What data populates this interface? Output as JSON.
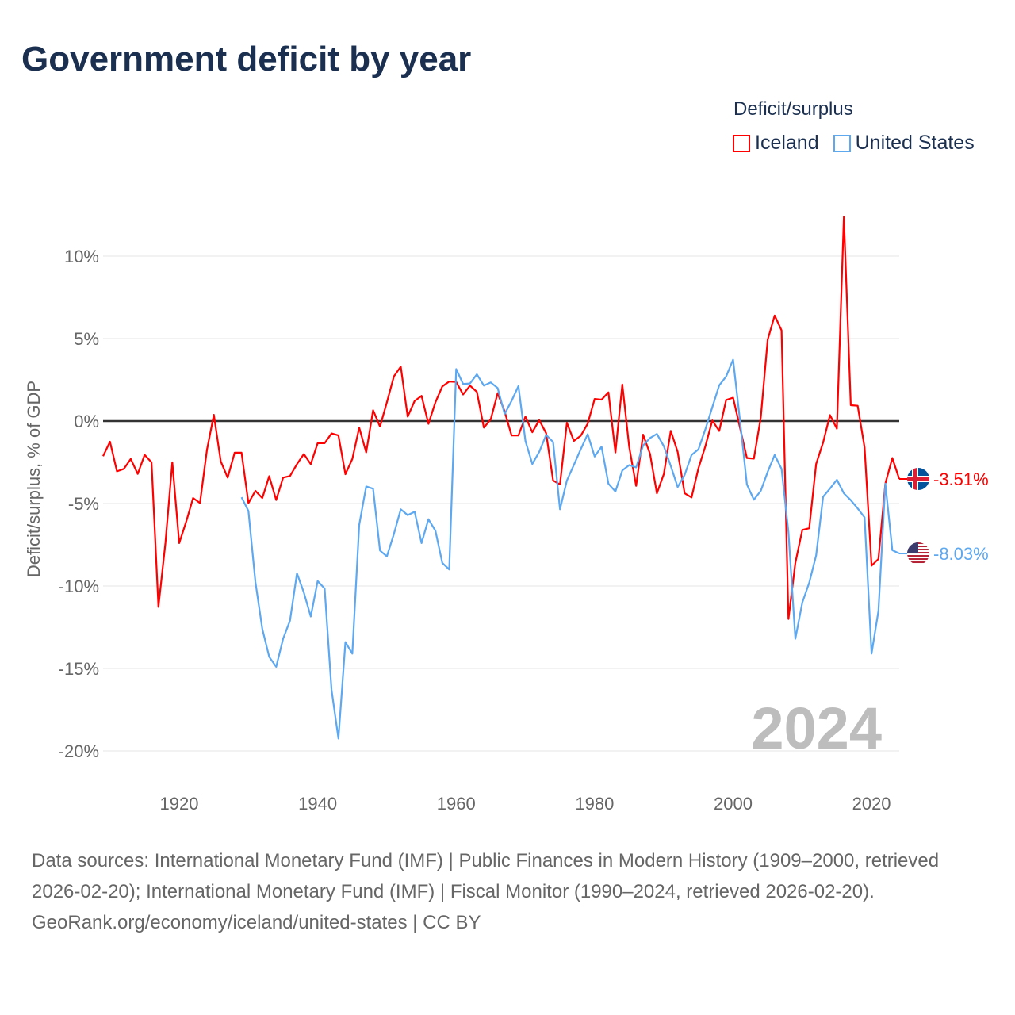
{
  "title": "Government deficit by year",
  "legend": {
    "title": "Deficit/surplus",
    "items": [
      {
        "label": "Iceland",
        "color": "#ff0000"
      },
      {
        "label": "United States",
        "color": "#5ea8f0"
      }
    ]
  },
  "chart_data": {
    "type": "line",
    "title": "Government deficit by year",
    "xlabel": "",
    "ylabel": "Deficit/surplus, % of GDP",
    "xlim": [
      1909,
      2024
    ],
    "ylim": [
      -20,
      12.5
    ],
    "x_ticks": [
      1920,
      1940,
      1960,
      1980,
      2000,
      2020
    ],
    "y_ticks": [
      10,
      5,
      0,
      -5,
      -10,
      -15,
      -20
    ],
    "y_tick_labels": [
      "10%",
      "5%",
      "0%",
      "-5%",
      "-10%",
      "-15%",
      "-20%"
    ],
    "x_tick_labels": [
      "1920",
      "1940",
      "1960",
      "1980",
      "2000",
      "2020"
    ],
    "grid": true,
    "legend_position": "top-right",
    "year_watermark": "2024",
    "series": [
      {
        "name": "Iceland",
        "color": "#ff0000",
        "start_year": 1909,
        "end_label": "-3.51%",
        "values": [
          -2.13,
          -1.25,
          -3.05,
          -2.9,
          -2.3,
          -3.2,
          -2.05,
          -2.5,
          -11.27,
          -7.4,
          -2.5,
          -7.4,
          -6.1,
          -4.67,
          -4.97,
          -1.74,
          0.38,
          -2.44,
          -3.43,
          -1.92,
          -1.92,
          -4.97,
          -4.23,
          -4.67,
          -3.34,
          -4.79,
          -3.43,
          -3.33,
          -2.61,
          -2.0,
          -2.61,
          -1.34,
          -1.34,
          -0.75,
          -0.87,
          -3.22,
          -2.3,
          -0.4,
          -1.9,
          0.66,
          -0.33,
          1.14,
          2.7,
          3.3,
          0.27,
          1.22,
          1.53,
          -0.17,
          1.14,
          2.1,
          2.4,
          2.37,
          1.61,
          2.15,
          1.77,
          -0.4,
          0.11,
          1.69,
          0.58,
          -0.87,
          -0.87,
          0.27,
          -0.68,
          0.06,
          -0.73,
          -3.6,
          -3.84,
          -0.1,
          -1.2,
          -0.89,
          -0.16,
          1.34,
          1.3,
          1.74,
          -1.91,
          2.22,
          -1.57,
          -3.93,
          -0.82,
          -1.98,
          -4.38,
          -3.2,
          -0.59,
          -1.87,
          -4.38,
          -4.63,
          -2.86,
          -1.53,
          0.04,
          -0.6,
          1.28,
          1.42,
          -0.4,
          -2.24,
          -2.28,
          0.21,
          4.93,
          6.4,
          5.5,
          -12.0,
          -8.6,
          -6.6,
          -6.5,
          -2.6,
          -1.3,
          0.36,
          -0.46,
          12.4,
          0.96,
          0.93,
          -1.6,
          -8.77,
          -8.36,
          -3.79,
          -2.24,
          -3.51
        ]
      },
      {
        "name": "United States",
        "color": "#5ea8f0",
        "start_year": 1929,
        "end_label": "-8.03%",
        "values": [
          -4.62,
          -5.45,
          -9.76,
          -12.6,
          -14.3,
          -14.9,
          -13.2,
          -12.1,
          -9.23,
          -10.4,
          -11.85,
          -9.7,
          -10.16,
          -16.3,
          -19.25,
          -13.4,
          -14.1,
          -6.3,
          -3.96,
          -4.1,
          -7.85,
          -8.2,
          -6.85,
          -5.35,
          -5.7,
          -5.5,
          -7.4,
          -5.95,
          -6.65,
          -8.6,
          -9.0,
          3.15,
          2.25,
          2.28,
          2.83,
          2.15,
          2.34,
          2.0,
          0.43,
          1.22,
          2.12,
          -1.2,
          -2.6,
          -1.87,
          -0.84,
          -1.27,
          -5.35,
          -3.6,
          -2.66,
          -1.7,
          -0.8,
          -2.15,
          -1.55,
          -3.8,
          -4.27,
          -2.99,
          -2.67,
          -2.81,
          -1.48,
          -1.03,
          -0.78,
          -1.53,
          -2.72,
          -4.0,
          -3.26,
          -2.06,
          -1.71,
          -0.5,
          0.84,
          2.17,
          2.7,
          3.72,
          0.04,
          -3.84,
          -4.77,
          -4.23,
          -3.08,
          -2.06,
          -2.9,
          -6.73,
          -13.2,
          -11.0,
          -9.8,
          -8.15,
          -4.59,
          -4.09,
          -3.56,
          -4.38,
          -4.8,
          -5.3,
          -5.84,
          -14.1,
          -11.5,
          -3.79,
          -7.83,
          -8.03
        ]
      }
    ]
  },
  "footer": {
    "sources": "Data sources: International Monetary Fund (IMF) | Public Finances in Modern History (1909–2000, retrieved 2026-02-20); International Monetary Fund (IMF) | Fiscal Monitor (1990–2024, retrieved 2026-02-20).",
    "credit": "GeoRank.org/economy/iceland/united-states | CC BY"
  }
}
